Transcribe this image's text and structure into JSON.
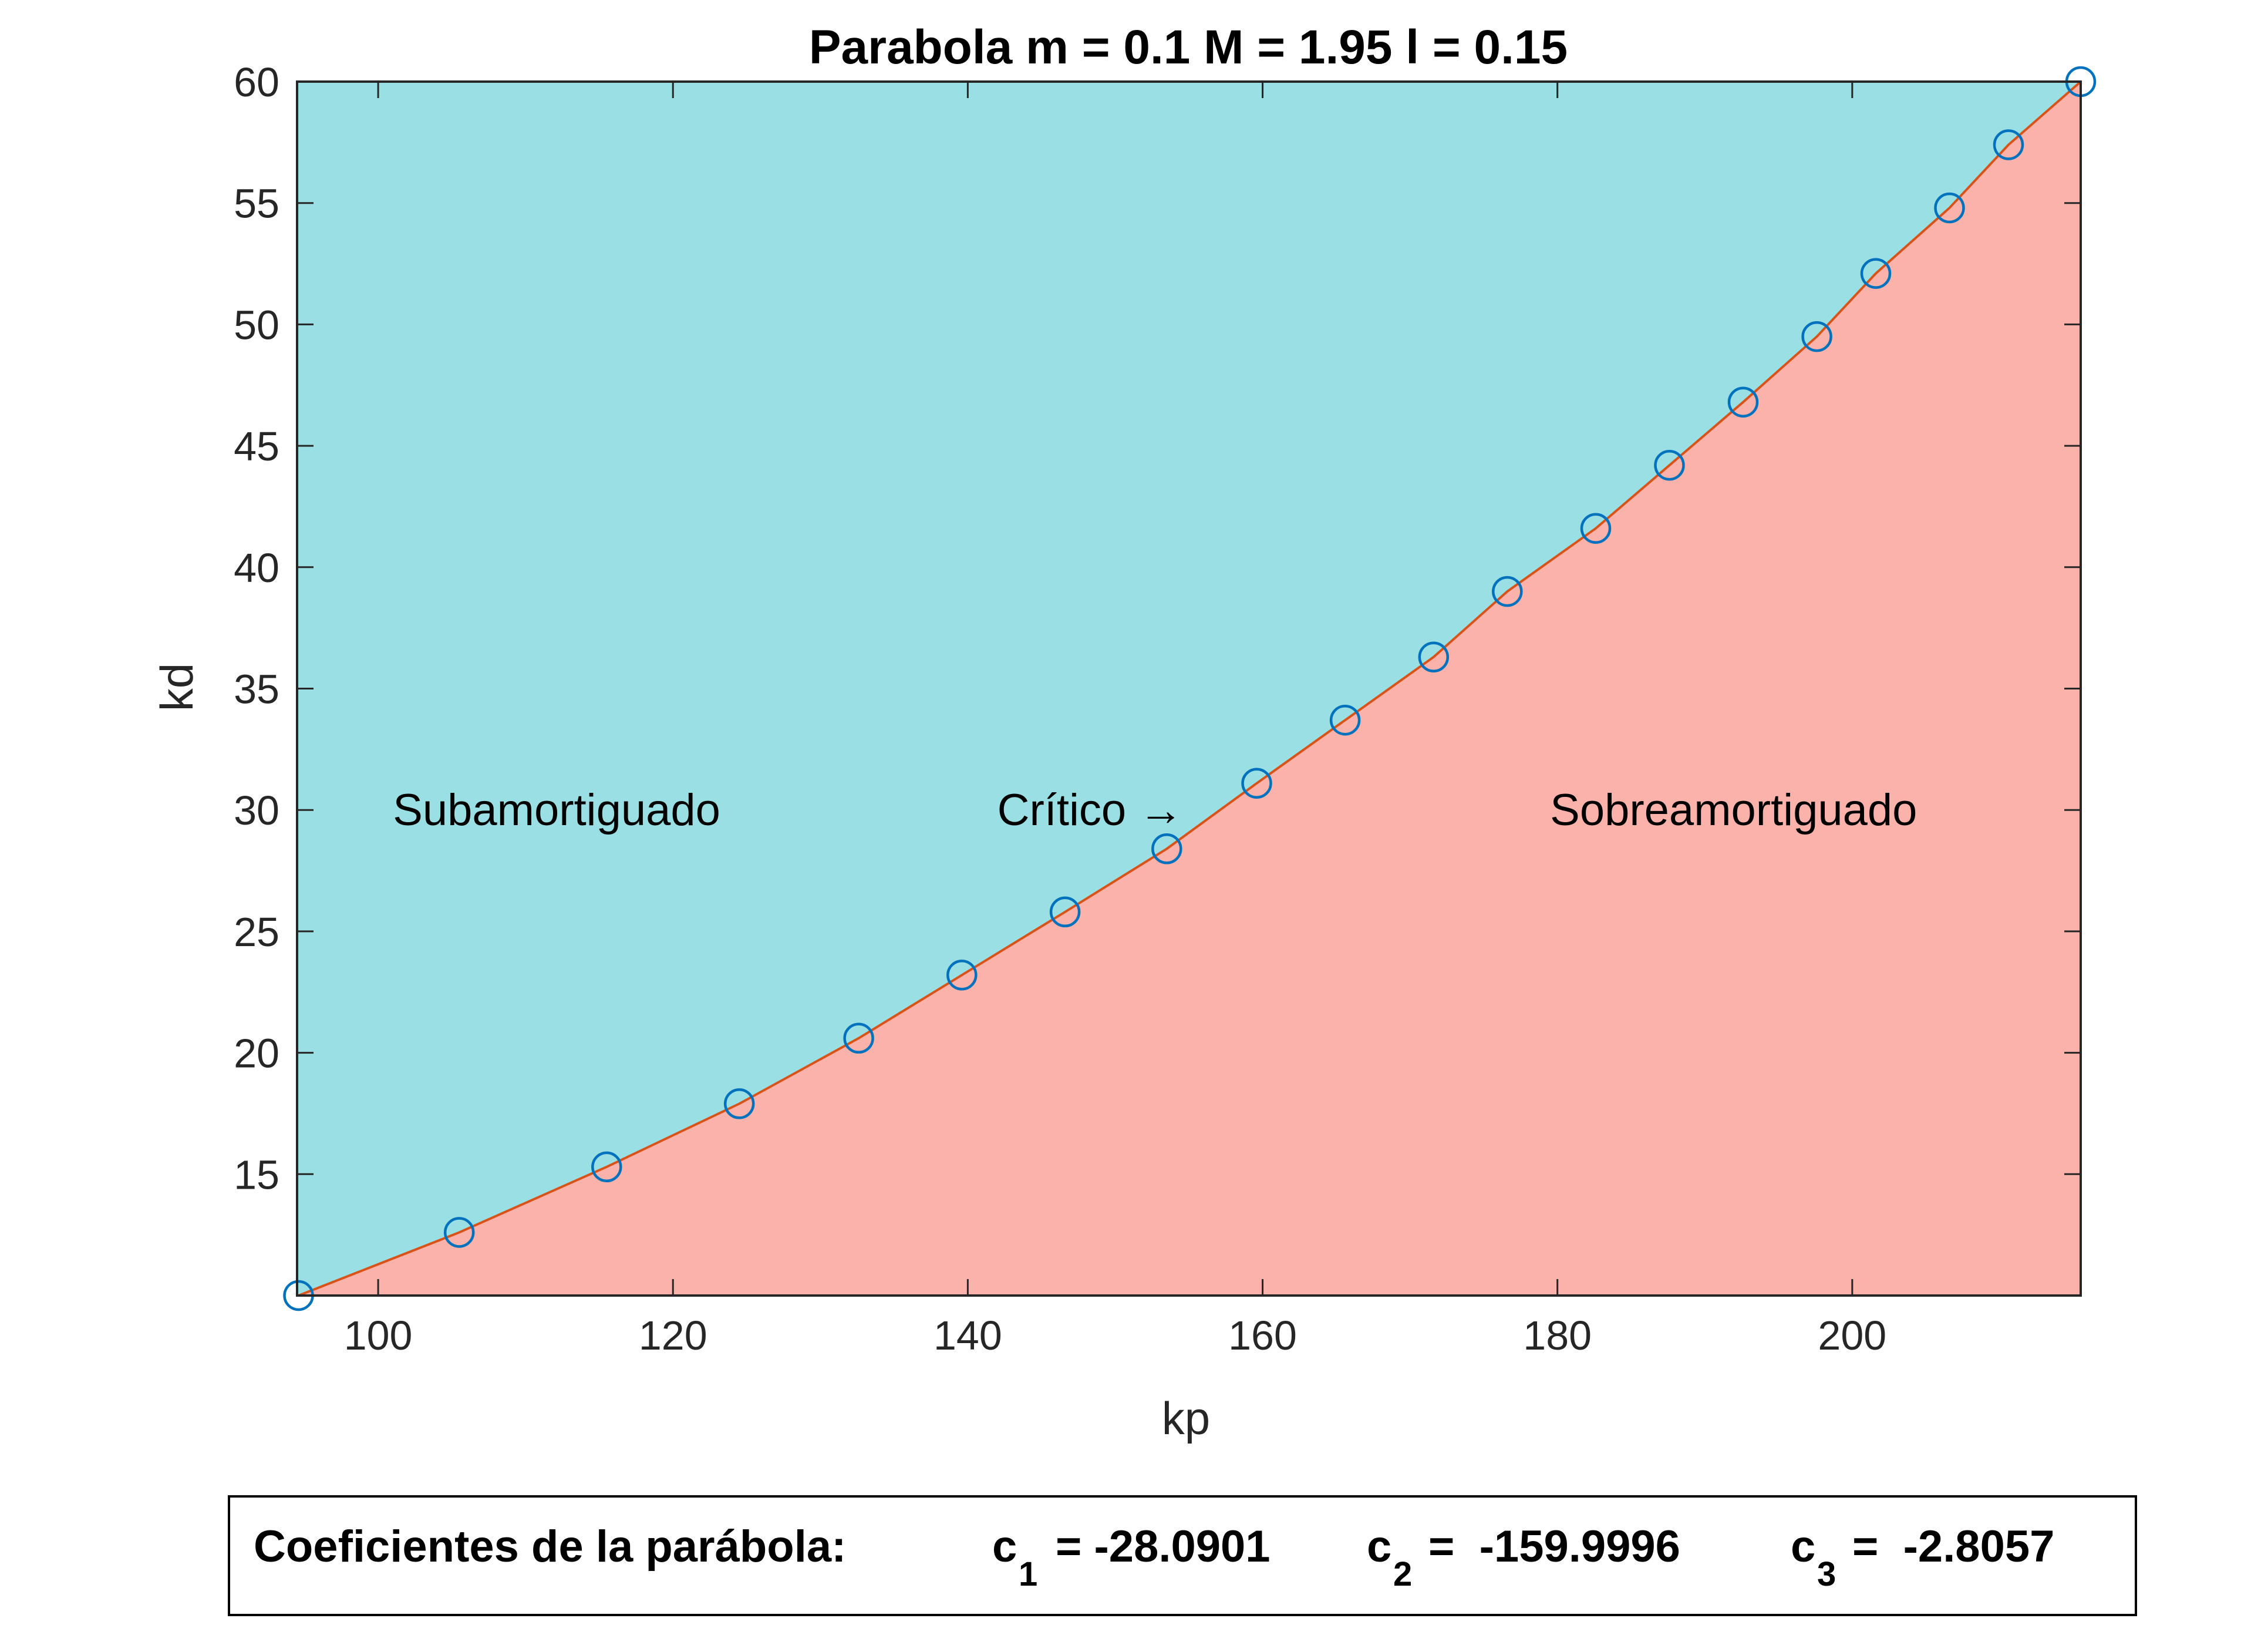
{
  "chart_data": {
    "type": "area",
    "title": "Parabola m = 0.1 M = 1.95 l = 0.15",
    "xlabel": "kp",
    "ylabel": "kd",
    "xlim": [
      94.5,
      215.5
    ],
    "ylim": [
      10,
      60
    ],
    "x_ticks": [
      100,
      120,
      140,
      160,
      180,
      200
    ],
    "y_ticks": [
      15,
      20,
      25,
      30,
      35,
      40,
      45,
      50,
      55,
      60
    ],
    "grid": false,
    "colors": {
      "upper_region": "#9ADFE3",
      "lower_region": "#FBB2AA",
      "curve": "#D95319",
      "markers": "#0072BD",
      "axes": "#262626"
    },
    "series": [
      {
        "type": "scatter",
        "marker": "circle",
        "x": [
          94.6,
          105.5,
          115.5,
          124.5,
          132.6,
          139.6,
          146.6,
          153.5,
          159.6,
          165.6,
          171.6,
          176.6,
          182.6,
          187.6,
          192.6,
          197.6,
          201.6,
          206.6,
          210.6,
          215.5
        ],
        "y": [
          10.0,
          12.6,
          15.3,
          17.9,
          20.6,
          23.2,
          25.8,
          28.4,
          31.1,
          33.7,
          36.3,
          39.0,
          41.6,
          44.2,
          46.8,
          49.5,
          52.1,
          54.8,
          57.4,
          60.0
        ]
      }
    ],
    "annotations": [
      {
        "text": "Subamortiguado",
        "x": 101,
        "y": 30
      },
      {
        "text": "Crítico →",
        "x": 142,
        "y": 30
      },
      {
        "text": "Sobreamortiguado",
        "x": 179.5,
        "y": 30
      }
    ]
  },
  "coefficients": {
    "label": "Coeficientes de la parábola:",
    "c1": {
      "symbol": "c",
      "sub": "1",
      "value": "= -28.0901"
    },
    "c2": {
      "symbol": "c",
      "sub": "2",
      "value": "=  -159.9996"
    },
    "c3": {
      "symbol": "c",
      "sub": "3",
      "value": "=  -2.8057"
    }
  }
}
